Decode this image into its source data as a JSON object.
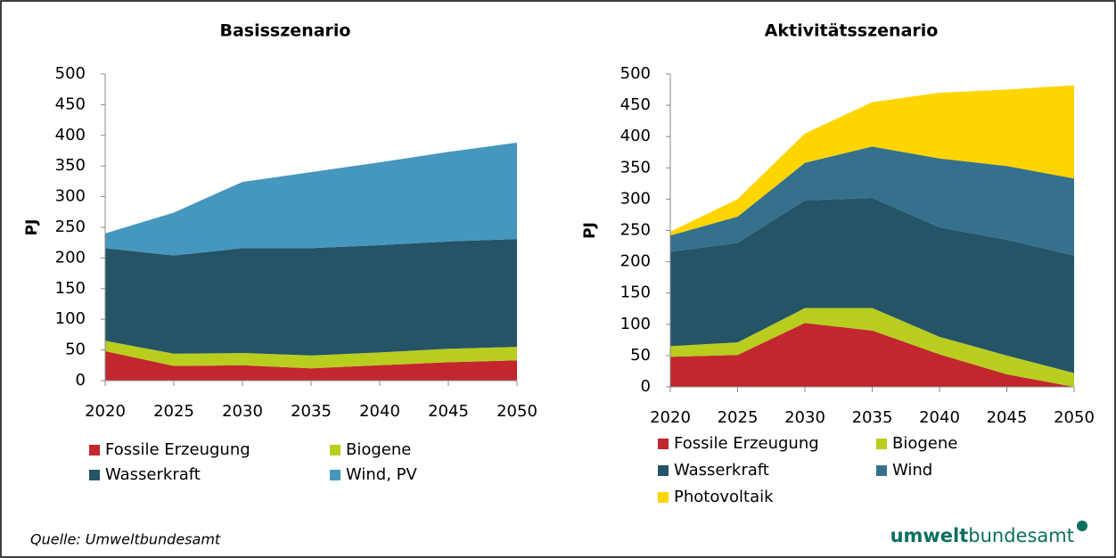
{
  "chart_data": [
    {
      "type": "stacked_area",
      "title": "Basisszenario",
      "ylabel": "PJ",
      "x": [
        2020,
        2025,
        2030,
        2035,
        2040,
        2045,
        2050
      ],
      "xlim": [
        2020,
        2050
      ],
      "xticks": [
        2020,
        2025,
        2030,
        2035,
        2040,
        2045,
        2050
      ],
      "ylim": [
        0,
        500
      ],
      "yticks": [
        0,
        50,
        100,
        150,
        200,
        250,
        300,
        350,
        400,
        450,
        500
      ],
      "series": [
        {
          "name": "Fossile Erzeugung",
          "color": "#c1272d",
          "values": [
            48,
            24,
            25,
            20,
            25,
            30,
            33
          ]
        },
        {
          "name": "Biogene",
          "color": "#b9cd1f",
          "values": [
            17,
            20,
            20,
            21,
            21,
            22,
            22
          ]
        },
        {
          "name": "Wasserkraft",
          "color": "#245466",
          "values": [
            151,
            160,
            171,
            175,
            175,
            175,
            176
          ]
        },
        {
          "name": "Wind, PV",
          "color": "#4597bd",
          "values": [
            24,
            70,
            108,
            124,
            135,
            146,
            157
          ]
        }
      ]
    },
    {
      "type": "stacked_area",
      "title": "Aktivitätsszenario",
      "ylabel": "PJ",
      "x": [
        2020,
        2025,
        2030,
        2035,
        2040,
        2045,
        2050
      ],
      "xlim": [
        2020,
        2050
      ],
      "xticks": [
        2020,
        2025,
        2030,
        2035,
        2040,
        2045,
        2050
      ],
      "ylim": [
        0,
        500
      ],
      "yticks": [
        0,
        50,
        100,
        150,
        200,
        250,
        300,
        350,
        400,
        450,
        500
      ],
      "series": [
        {
          "name": "Fossile Erzeugung",
          "color": "#c1272d",
          "values": [
            48,
            51,
            102,
            90,
            52,
            20,
            0
          ]
        },
        {
          "name": "Biogene",
          "color": "#b9cd1f",
          "values": [
            17,
            20,
            24,
            36,
            28,
            30,
            22
          ]
        },
        {
          "name": "Wasserkraft",
          "color": "#245466",
          "values": [
            151,
            159,
            172,
            176,
            175,
            185,
            188
          ]
        },
        {
          "name": "Wind",
          "color": "#35718c",
          "values": [
            26,
            42,
            60,
            82,
            110,
            118,
            123
          ]
        },
        {
          "name": "Photovoltaik",
          "color": "#ffd500",
          "values": [
            6,
            28,
            47,
            71,
            105,
            122,
            149
          ]
        }
      ]
    }
  ],
  "source": "Quelle: Umweltbundesamt",
  "logo": {
    "bold": "umwelt",
    "rest": "bundesamt"
  }
}
